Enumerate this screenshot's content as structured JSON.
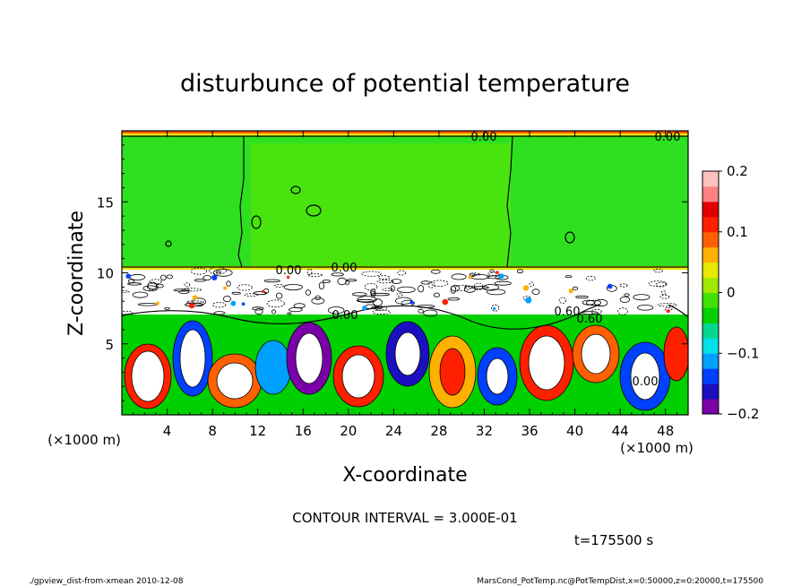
{
  "chart_data": {
    "type": "heatmap",
    "title": "disturbunce of potential temperature",
    "xlabel": "X-coordinate",
    "ylabel": "Z-coordinate",
    "x_unit": "(×1000 m)",
    "y_unit": "(×1000 m)",
    "xlim": [
      0,
      50
    ],
    "ylim": [
      0,
      20
    ],
    "x_ticks": [
      4,
      8,
      12,
      16,
      20,
      24,
      28,
      32,
      36,
      40,
      44,
      48
    ],
    "y_ticks": [
      5,
      10,
      15
    ],
    "colorbar": {
      "range": [
        -0.2,
        0.2
      ],
      "tick_values": [
        0.2,
        0.1,
        0,
        -0.1,
        -0.2
      ],
      "tick_labels": [
        "0.2",
        "0.1",
        "0",
        "−0.1",
        "−0.2"
      ],
      "colors": [
        "#7a00a8",
        "#1a10c0",
        "#0040ff",
        "#00a0ff",
        "#00e0e8",
        "#00d890",
        "#00d000",
        "#40e000",
        "#a0e800",
        "#e8e800",
        "#ffb000",
        "#ff6000",
        "#ff2000",
        "#e00000",
        "#ff8080",
        "#ffc0c0"
      ]
    },
    "contour_labels": [
      "0.00",
      "0.00",
      "0.00",
      "0.00",
      "0.00",
      "0.60",
      "0.60",
      "0.00"
    ],
    "contour_interval_text": "CONTOUR INTERVAL = 3.000E-01",
    "time_text": "t=175500 s"
  },
  "footer": {
    "left": "./gpview_dist-from-xmean  2010-12-08",
    "right": "MarsCond_PotTemp.nc@PotTempDist,x=0:50000,z=0:20000,t=175500"
  }
}
